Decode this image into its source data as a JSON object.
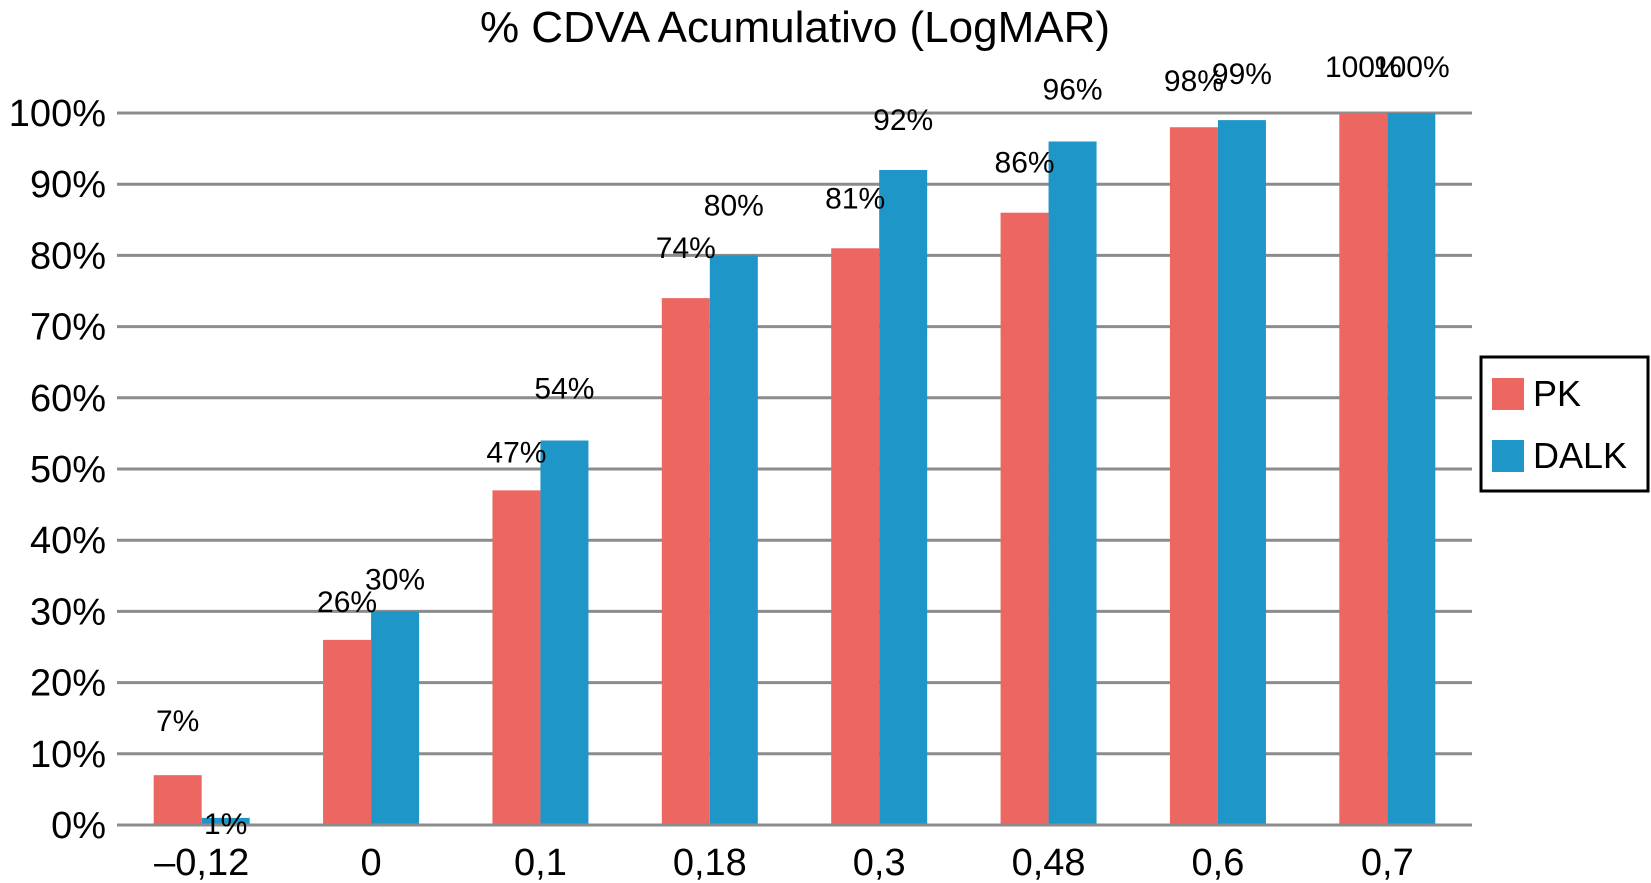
{
  "chart_data": {
    "type": "bar",
    "title": "% CDVA Acumulativo (LogMAR)",
    "xlabel": "",
    "ylabel": "",
    "categories": [
      "–0,12",
      "0",
      "0,1",
      "0,18",
      "0,3",
      "0,48",
      "0,6",
      "0,7"
    ],
    "series": [
      {
        "name": "PK",
        "color": "#EC6762",
        "values": [
          7,
          26,
          47,
          74,
          81,
          86,
          98,
          100
        ],
        "labels": [
          "7%",
          "26%",
          "47%",
          "74%",
          "81%",
          "86%",
          "98%",
          "100%"
        ]
      },
      {
        "name": "DALK",
        "color": "#1E96C8",
        "values": [
          1,
          30,
          54,
          80,
          92,
          96,
          99,
          100
        ],
        "labels": [
          "1%",
          "30%",
          "54%",
          "80%",
          "92%",
          "96%",
          "99%",
          "100%"
        ]
      }
    ],
    "ylim": [
      0,
      100
    ],
    "yticks": [
      0,
      10,
      20,
      30,
      40,
      50,
      60,
      70,
      80,
      90,
      100
    ],
    "ytick_labels": [
      "0%",
      "10%",
      "20%",
      "30%",
      "40%",
      "50%",
      "60%",
      "70%",
      "80%",
      "90%",
      "100%"
    ],
    "grid": true,
    "legend": "right"
  }
}
